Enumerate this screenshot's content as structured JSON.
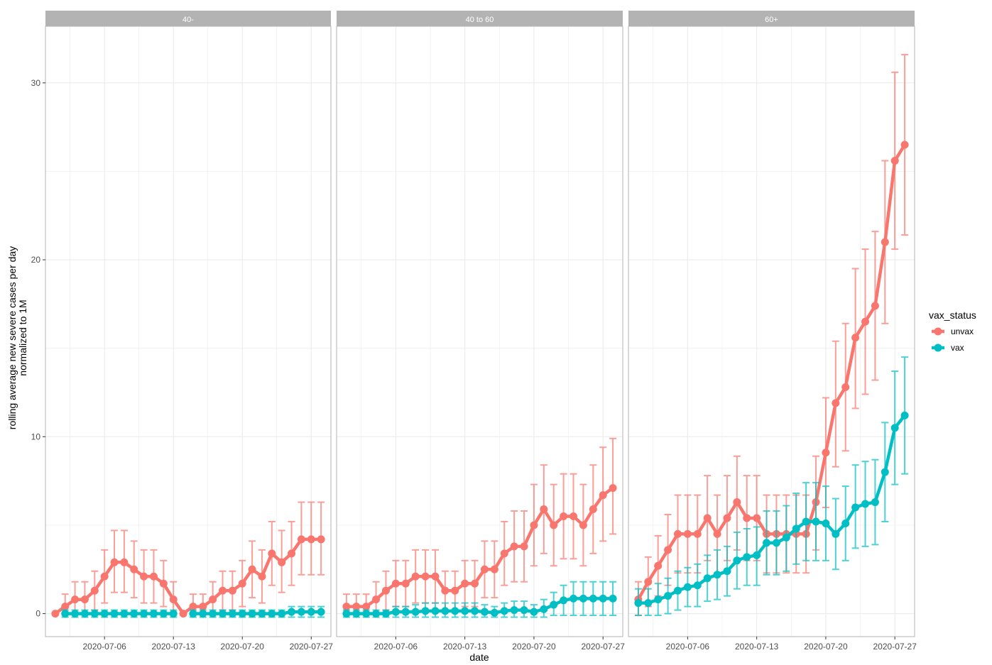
{
  "chart_data": {
    "type": "line",
    "xlabel": "date",
    "ylabel_lines": [
      "rolling average new severe cases per day",
      "normalized to 1M"
    ],
    "legend": {
      "title": "vax_status",
      "position": "right"
    },
    "x_ticks": [
      "2020-07-06",
      "2020-07-13",
      "2020-07-20",
      "2020-07-27"
    ],
    "y_ticks": [
      0,
      10,
      20,
      30
    ],
    "ylim": [
      -1.3,
      33.2
    ],
    "xlim": [
      "2020-06-30",
      "2020-07-29"
    ],
    "grid": true,
    "colors": {
      "unvax": "#F8766D",
      "vax": "#00BFC4",
      "strip": "#B3B3B3",
      "grid": "#EBEBEB",
      "panel_border": "#B3B3B3"
    },
    "x": [
      "2020-07-01",
      "2020-07-02",
      "2020-07-03",
      "2020-07-04",
      "2020-07-05",
      "2020-07-06",
      "2020-07-07",
      "2020-07-08",
      "2020-07-09",
      "2020-07-10",
      "2020-07-11",
      "2020-07-12",
      "2020-07-13",
      "2020-07-14",
      "2020-07-15",
      "2020-07-16",
      "2020-07-17",
      "2020-07-18",
      "2020-07-19",
      "2020-07-20",
      "2020-07-21",
      "2020-07-22",
      "2020-07-23",
      "2020-07-24",
      "2020-07-25",
      "2020-07-26",
      "2020-07-27",
      "2020-07-28"
    ],
    "panels": [
      {
        "label": "40-",
        "series": [
          {
            "name": "unvax",
            "values": [
              0.0,
              0.4,
              0.8,
              0.8,
              1.3,
              2.1,
              2.9,
              2.9,
              2.5,
              2.1,
              2.1,
              1.7,
              0.8,
              0.0,
              0.4,
              0.4,
              0.8,
              1.3,
              1.3,
              1.7,
              2.5,
              2.1,
              3.4,
              2.9,
              3.4,
              4.2,
              4.2,
              4.2
            ],
            "lower": [
              0.0,
              0.0,
              0.0,
              0.0,
              0.2,
              0.6,
              1.2,
              1.2,
              0.9,
              0.6,
              0.6,
              0.4,
              0.0,
              0.0,
              0.0,
              0.0,
              0.0,
              0.2,
              0.2,
              0.4,
              0.9,
              0.6,
              1.6,
              1.2,
              1.6,
              2.2,
              2.2,
              2.2
            ],
            "upper": [
              0.0,
              1.1,
              1.8,
              1.8,
              2.4,
              3.6,
              4.7,
              4.7,
              4.1,
              3.6,
              3.6,
              3.0,
              1.8,
              0.0,
              1.1,
              1.1,
              1.8,
              2.4,
              2.4,
              3.0,
              4.1,
              3.6,
              5.2,
              4.7,
              5.2,
              6.3,
              6.3,
              6.3
            ]
          },
          {
            "name": "vax",
            "values": [
              null,
              0.0,
              0.0,
              0.0,
              0.0,
              0.0,
              0.0,
              0.0,
              0.0,
              0.0,
              0.0,
              0.0,
              0.0,
              null,
              0.0,
              0.0,
              0.0,
              0.0,
              0.0,
              0.0,
              0.0,
              0.0,
              0.0,
              0.0,
              0.1,
              0.1,
              0.1,
              0.1
            ],
            "lower": [
              null,
              -0.2,
              -0.2,
              -0.2,
              -0.2,
              -0.2,
              -0.2,
              -0.2,
              -0.2,
              -0.2,
              -0.2,
              -0.2,
              -0.2,
              null,
              -0.2,
              -0.2,
              -0.2,
              -0.2,
              -0.2,
              -0.2,
              -0.2,
              -0.2,
              -0.2,
              -0.2,
              -0.2,
              -0.2,
              -0.2,
              -0.2
            ],
            "upper": [
              null,
              0.2,
              0.2,
              0.2,
              0.2,
              0.2,
              0.2,
              0.2,
              0.2,
              0.2,
              0.2,
              0.2,
              0.2,
              null,
              0.2,
              0.2,
              0.2,
              0.2,
              0.2,
              0.2,
              0.2,
              0.2,
              0.2,
              0.2,
              0.4,
              0.4,
              0.4,
              0.4
            ]
          }
        ]
      },
      {
        "label": "40 to 60",
        "series": [
          {
            "name": "unvax",
            "values": [
              0.4,
              0.4,
              0.4,
              0.8,
              1.3,
              1.7,
              1.7,
              2.1,
              2.1,
              2.1,
              1.3,
              1.3,
              1.7,
              1.7,
              2.5,
              2.5,
              3.4,
              3.8,
              3.8,
              5.0,
              5.9,
              5.0,
              5.5,
              5.5,
              5.0,
              5.9,
              6.7,
              7.1
            ],
            "lower": [
              0.0,
              0.0,
              0.0,
              0.0,
              0.2,
              0.4,
              0.4,
              0.6,
              0.6,
              0.6,
              0.2,
              0.2,
              0.4,
              0.4,
              0.9,
              0.9,
              1.6,
              1.8,
              1.8,
              2.7,
              3.4,
              2.7,
              3.1,
              3.1,
              2.7,
              3.4,
              4.1,
              4.5
            ],
            "upper": [
              1.1,
              1.1,
              1.1,
              1.8,
              2.4,
              3.0,
              3.0,
              3.6,
              3.6,
              3.6,
              2.4,
              2.4,
              3.0,
              3.0,
              4.1,
              4.1,
              5.2,
              5.8,
              5.8,
              7.3,
              8.4,
              7.3,
              7.9,
              7.9,
              7.3,
              8.4,
              9.4,
              9.9
            ]
          },
          {
            "name": "vax",
            "values": [
              0.0,
              0.0,
              0.0,
              0.0,
              0.0,
              0.1,
              0.1,
              0.1,
              0.15,
              0.15,
              0.15,
              0.15,
              0.15,
              0.15,
              0.1,
              0.05,
              0.15,
              0.2,
              0.2,
              0.1,
              0.25,
              0.5,
              0.75,
              0.85,
              0.85,
              0.85,
              0.85,
              0.85
            ],
            "lower": [
              -0.2,
              -0.2,
              -0.2,
              -0.2,
              -0.2,
              -0.2,
              -0.2,
              -0.2,
              -0.2,
              -0.2,
              -0.2,
              -0.2,
              -0.2,
              -0.2,
              -0.2,
              -0.2,
              -0.2,
              -0.2,
              -0.2,
              -0.2,
              -0.2,
              -0.1,
              -0.1,
              -0.1,
              -0.1,
              -0.1,
              -0.1,
              -0.1
            ],
            "upper": [
              0.2,
              0.2,
              0.2,
              0.2,
              0.2,
              0.4,
              0.4,
              0.5,
              0.6,
              0.6,
              0.6,
              0.6,
              0.6,
              0.6,
              0.5,
              0.4,
              0.6,
              0.7,
              0.7,
              0.5,
              0.8,
              1.2,
              1.6,
              1.8,
              1.8,
              1.8,
              1.8,
              1.8
            ]
          }
        ]
      },
      {
        "label": "60+",
        "series": [
          {
            "name": "unvax",
            "values": [
              0.8,
              1.8,
              2.7,
              3.6,
              4.5,
              4.5,
              4.5,
              5.4,
              4.5,
              5.4,
              6.3,
              5.4,
              5.4,
              4.5,
              4.5,
              4.5,
              4.5,
              4.5,
              6.3,
              9.1,
              11.9,
              12.8,
              15.6,
              16.5,
              17.4,
              21.0,
              25.6,
              26.5
            ],
            "lower": [
              -0.1,
              0.4,
              1.0,
              1.6,
              2.3,
              2.3,
              2.3,
              3.0,
              2.3,
              3.0,
              3.6,
              3.0,
              3.0,
              2.3,
              2.3,
              2.3,
              2.3,
              2.3,
              3.6,
              6.0,
              8.3,
              9.2,
              11.6,
              12.4,
              13.2,
              16.4,
              20.6,
              21.4
            ],
            "upper": [
              1.8,
              3.2,
              4.4,
              5.6,
              6.7,
              6.7,
              6.7,
              7.8,
              6.7,
              7.8,
              8.9,
              7.8,
              7.8,
              6.7,
              6.7,
              6.7,
              6.7,
              6.7,
              8.9,
              12.2,
              15.4,
              16.4,
              19.5,
              20.6,
              21.6,
              25.6,
              30.6,
              31.6
            ]
          },
          {
            "name": "vax",
            "values": [
              0.6,
              0.6,
              0.8,
              1.0,
              1.3,
              1.5,
              1.6,
              2.0,
              2.2,
              2.4,
              3.0,
              3.2,
              3.3,
              4.0,
              4.0,
              4.3,
              4.8,
              5.2,
              5.2,
              5.1,
              4.5,
              5.1,
              6.0,
              6.2,
              6.3,
              8.0,
              10.5,
              11.2
            ],
            "lower": [
              -0.1,
              -0.1,
              -0.1,
              0.0,
              0.2,
              0.4,
              0.4,
              0.7,
              0.8,
              1.0,
              1.4,
              1.6,
              1.6,
              2.2,
              2.2,
              2.4,
              2.8,
              3.0,
              3.0,
              3.0,
              2.5,
              3.0,
              3.7,
              3.8,
              3.9,
              5.2,
              7.3,
              7.9
            ],
            "upper": [
              1.4,
              1.4,
              1.7,
              2.0,
              2.4,
              2.6,
              2.8,
              3.3,
              3.6,
              3.8,
              4.6,
              4.8,
              4.9,
              5.8,
              5.8,
              6.1,
              6.8,
              7.4,
              7.4,
              7.2,
              6.5,
              7.2,
              8.4,
              8.6,
              8.7,
              10.8,
              13.7,
              14.5
            ]
          }
        ]
      }
    ]
  }
}
